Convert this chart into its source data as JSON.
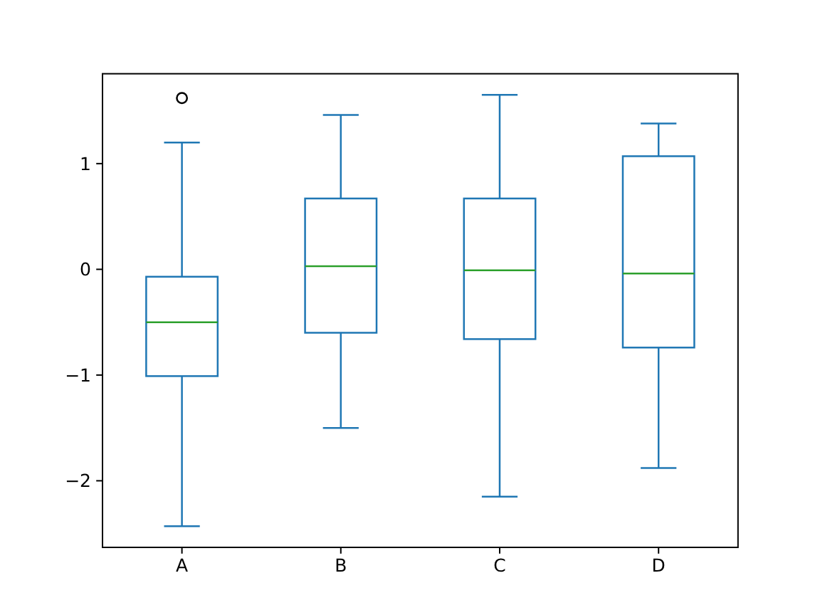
{
  "chart_data": {
    "type": "box",
    "categories": [
      "A",
      "B",
      "C",
      "D"
    ],
    "series": [
      {
        "color": "#1f77b4",
        "boxes": [
          {
            "low": -2.43,
            "q1": -1.01,
            "median": -0.5,
            "q3": -0.07,
            "high": 1.2,
            "outliers": [
              1.62
            ]
          },
          {
            "low": -1.5,
            "q1": -0.6,
            "median": 0.03,
            "q3": 0.67,
            "high": 1.46
          },
          {
            "low": -2.15,
            "q1": -0.66,
            "median": -0.01,
            "q3": 0.67,
            "high": 1.65
          },
          {
            "low": -1.88,
            "q1": -0.74,
            "median": -0.04,
            "q3": 1.07,
            "high": 1.38
          }
        ]
      }
    ],
    "ylim": [
      -2.63,
      1.85
    ],
    "yticks": [
      {
        "value": -2,
        "label": "−2"
      },
      {
        "value": -1,
        "label": "−1"
      },
      {
        "value": 0,
        "label": "0"
      },
      {
        "value": 1,
        "label": "1"
      }
    ]
  }
}
